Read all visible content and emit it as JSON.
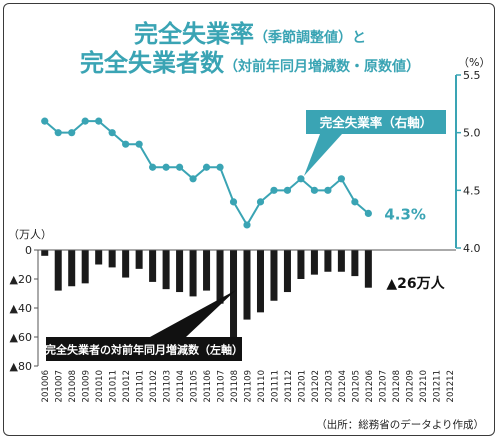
{
  "title": {
    "line1_main": "完全失業率",
    "line1_sub": "（季節調整値）と",
    "line2_main": "完全失業者数",
    "line2_sub": "（対前年同月増減数・原数値）"
  },
  "source": "（出所：総務省のデータより作成）",
  "colors": {
    "rate_line": "#3aa4b4",
    "bars": "#1a1a1a",
    "axis": "#3aa4b4"
  },
  "chart_data": {
    "type": "bar+line",
    "categories": [
      "201006",
      "201007",
      "201008",
      "201009",
      "201010",
      "201011",
      "201012",
      "201101",
      "201102",
      "201103",
      "201104",
      "201105",
      "201106",
      "201107",
      "201108",
      "201109",
      "201110",
      "201111",
      "201112",
      "201201",
      "201202",
      "201203",
      "201204",
      "201205",
      "201206",
      "201207",
      "201208",
      "201209",
      "201210",
      "201211",
      "201212"
    ],
    "series": [
      {
        "name": "完全失業率（右軸）",
        "type": "line",
        "axis": "right",
        "values": [
          5.1,
          5.0,
          5.0,
          5.1,
          5.1,
          5.0,
          4.9,
          4.9,
          4.7,
          4.7,
          4.7,
          4.6,
          4.7,
          4.7,
          4.4,
          4.2,
          4.4,
          4.5,
          4.5,
          4.6,
          4.5,
          4.5,
          4.6,
          4.4,
          4.3,
          null,
          null,
          null,
          null,
          null,
          null
        ]
      },
      {
        "name": "完全失業者の対前年同月増減数（左軸）",
        "type": "bar",
        "axis": "left",
        "values": [
          -4,
          -28,
          -25,
          -23,
          -10,
          -12,
          -19,
          -13,
          -22,
          -27,
          -29,
          -32,
          -28,
          -37,
          -62,
          -48,
          -43,
          -35,
          -29,
          -20,
          -17,
          -15,
          -15,
          -18,
          -26,
          null,
          null,
          null,
          null,
          null,
          null
        ]
      }
    ],
    "left_axis": {
      "unit": "（万人）",
      "ticks": [
        "0",
        "▲20",
        "▲40",
        "▲60",
        "▲80"
      ],
      "ylim": [
        -80,
        0
      ]
    },
    "right_axis": {
      "unit": "（%）",
      "ticks": [
        "5.5",
        "5.0",
        "4.5",
        "4.0"
      ],
      "ylim": [
        4.0,
        5.5
      ]
    },
    "annotations": {
      "rate_callout": "完全失業率（右軸）",
      "bars_callout": "完全失業者の対前年同月増減数（左軸）",
      "rate_last_label": "4.3%",
      "bars_last_label": "▲26万人"
    }
  }
}
